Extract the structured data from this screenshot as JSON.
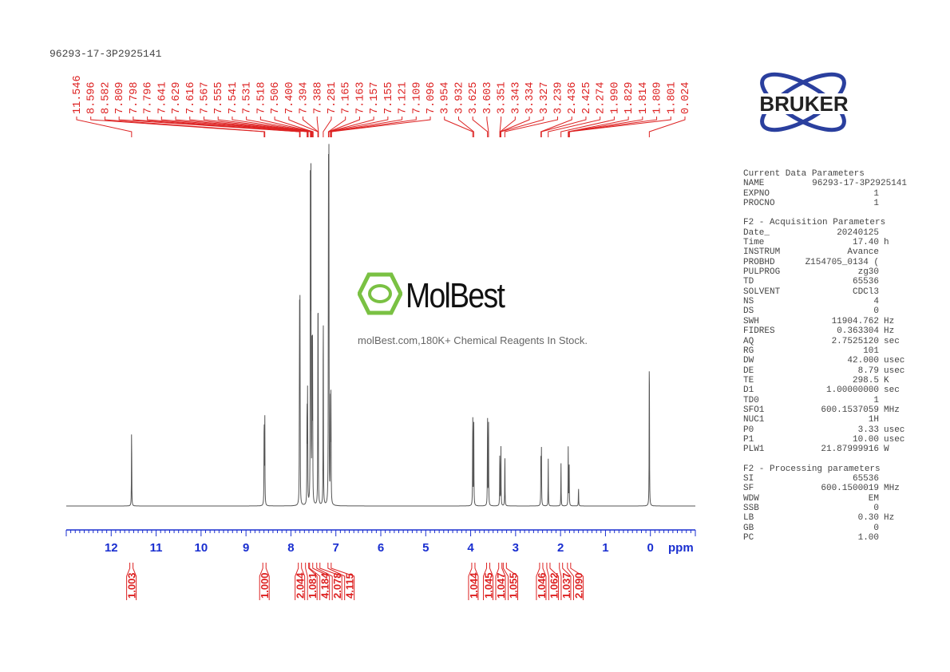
{
  "title": "96293-17-3P2925141",
  "logo": {
    "brand": "BRUKER",
    "color": "#2a3f9e"
  },
  "watermark": {
    "name": "MolBest",
    "tagline": "molBest.com,180K+ Chemical Reagents In Stock.",
    "color": "#7ac143"
  },
  "colors": {
    "peak_labels": "#d22",
    "axis": "#1a2fd0",
    "spectrum": "#555"
  },
  "parameters": {
    "current": {
      "heading": "Current Data Parameters",
      "rows": [
        [
          "NAME",
          "96293-17-3P2925141",
          ""
        ],
        [
          "EXPNO",
          "1",
          ""
        ],
        [
          "PROCNO",
          "1",
          ""
        ]
      ]
    },
    "acquisition": {
      "heading": "F2 - Acquisition Parameters",
      "rows": [
        [
          "Date_",
          "20240125",
          ""
        ],
        [
          "Time",
          "17.40",
          "h"
        ],
        [
          "INSTRUM",
          "Avance",
          ""
        ],
        [
          "PROBHD",
          "Z154705_0134 (",
          ""
        ],
        [
          "PULPROG",
          "zg30",
          ""
        ],
        [
          "TD",
          "65536",
          ""
        ],
        [
          "SOLVENT",
          "CDCl3",
          ""
        ],
        [
          "NS",
          "4",
          ""
        ],
        [
          "DS",
          "0",
          ""
        ],
        [
          "SWH",
          "11904.762",
          "Hz"
        ],
        [
          "FIDRES",
          "0.363304",
          "Hz"
        ],
        [
          "AQ",
          "2.7525120",
          "sec"
        ],
        [
          "RG",
          "101",
          ""
        ],
        [
          "DW",
          "42.000",
          "usec"
        ],
        [
          "DE",
          "8.79",
          "usec"
        ],
        [
          "TE",
          "298.5",
          "K"
        ],
        [
          "D1",
          "1.00000000",
          "sec"
        ],
        [
          "TD0",
          "1",
          ""
        ],
        [
          "SFO1",
          "600.1537059",
          "MHz"
        ],
        [
          "NUC1",
          "1H",
          ""
        ],
        [
          "P0",
          "3.33",
          "usec"
        ],
        [
          "P1",
          "10.00",
          "usec"
        ],
        [
          "PLW1",
          "21.87999916",
          "W"
        ]
      ]
    },
    "processing": {
      "heading": "F2 - Processing parameters",
      "rows": [
        [
          "SI",
          "65536",
          ""
        ],
        [
          "SF",
          "600.1500019",
          "MHz"
        ],
        [
          "WDW",
          "EM",
          ""
        ],
        [
          "SSB",
          "0",
          ""
        ],
        [
          "LB",
          "0.30",
          "Hz"
        ],
        [
          "GB",
          "0",
          ""
        ],
        [
          "PC",
          "1.00",
          ""
        ]
      ]
    }
  },
  "chart_data": {
    "type": "line",
    "xlabel": "ppm",
    "xlim": [
      13,
      -1
    ],
    "x_reversed": true,
    "xticks": [
      12,
      11,
      10,
      9,
      8,
      7,
      6,
      5,
      4,
      3,
      2,
      1,
      0
    ],
    "grid": false,
    "peak_labels": [
      "11.546",
      "8.596",
      "8.582",
      "7.809",
      "7.798",
      "7.796",
      "7.641",
      "7.629",
      "7.616",
      "7.567",
      "7.555",
      "7.541",
      "7.531",
      "7.518",
      "7.506",
      "7.400",
      "7.394",
      "7.388",
      "7.281",
      "7.165",
      "7.163",
      "7.157",
      "7.155",
      "7.121",
      "7.109",
      "7.096",
      "3.954",
      "3.932",
      "3.625",
      "3.603",
      "3.351",
      "3.343",
      "3.334",
      "3.327",
      "3.239",
      "2.436",
      "2.425",
      "2.274",
      "1.990",
      "1.829",
      "1.814",
      "1.809",
      "1.801",
      "0.024"
    ],
    "peaks_relative_intensity": [
      [
        11.546,
        25
      ],
      [
        8.596,
        29
      ],
      [
        8.582,
        29
      ],
      [
        7.809,
        60
      ],
      [
        7.798,
        58
      ],
      [
        7.641,
        34
      ],
      [
        7.629,
        34
      ],
      [
        7.567,
        96
      ],
      [
        7.555,
        92
      ],
      [
        7.531,
        50
      ],
      [
        7.518,
        48
      ],
      [
        7.4,
        44
      ],
      [
        7.394,
        44
      ],
      [
        7.281,
        66
      ],
      [
        7.165,
        100
      ],
      [
        7.155,
        98
      ],
      [
        7.121,
        34
      ],
      [
        7.109,
        34
      ],
      [
        3.954,
        30
      ],
      [
        3.932,
        30
      ],
      [
        3.625,
        28
      ],
      [
        3.603,
        28
      ],
      [
        3.351,
        18
      ],
      [
        3.327,
        18
      ],
      [
        3.239,
        17
      ],
      [
        2.436,
        17
      ],
      [
        2.425,
        16
      ],
      [
        2.274,
        14
      ],
      [
        1.99,
        13
      ],
      [
        1.829,
        17
      ],
      [
        1.809,
        15
      ],
      [
        1.6,
        6
      ],
      [
        0.024,
        52
      ]
    ],
    "integrals": [
      [
        11.55,
        "1.003"
      ],
      [
        8.59,
        "1.000"
      ],
      [
        7.8,
        "2.044"
      ],
      [
        7.64,
        "1.081"
      ],
      [
        7.55,
        "4.184"
      ],
      [
        7.39,
        "2.078"
      ],
      [
        7.14,
        "4.115"
      ],
      [
        3.94,
        "1.044"
      ],
      [
        3.61,
        "1.045"
      ],
      [
        3.34,
        "1.047"
      ],
      [
        3.24,
        "1.055"
      ],
      [
        2.43,
        "1.046"
      ],
      [
        2.27,
        "1.062"
      ],
      [
        1.99,
        "1.037"
      ],
      [
        1.81,
        "2.090"
      ]
    ]
  }
}
